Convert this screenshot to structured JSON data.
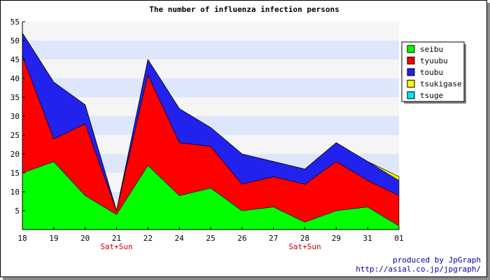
{
  "chart_data": {
    "type": "area",
    "stacked": true,
    "title": "The number of influenza infection persons",
    "xlabel": "",
    "ylabel": "",
    "categories": [
      "18",
      "19",
      "20",
      "21",
      "22",
      "24",
      "25",
      "26",
      "27",
      "28",
      "29",
      "31",
      "01"
    ],
    "weekend_markers": [
      {
        "category": "21",
        "label": "Sat+Sun"
      },
      {
        "category": "28",
        "label": "Sat+Sun"
      }
    ],
    "ylim": [
      0,
      55
    ],
    "yticks": [
      5,
      10,
      15,
      20,
      25,
      30,
      35,
      40,
      45,
      50,
      55
    ],
    "grid": "horizontal bands",
    "legend_position": "right",
    "series": [
      {
        "name": "seibu",
        "color": "#00ff00",
        "values": [
          15,
          18,
          9,
          4,
          17,
          9,
          11,
          5,
          6,
          2,
          5,
          6,
          1
        ]
      },
      {
        "name": "tyuubu",
        "color": "#ff0000",
        "values": [
          31,
          6,
          19,
          1,
          24,
          14,
          11,
          7,
          8,
          10,
          13,
          7,
          8
        ]
      },
      {
        "name": "toubu",
        "color": "#2222ee",
        "values": [
          6,
          15,
          5,
          0,
          4,
          9,
          5,
          8,
          4,
          4,
          5,
          5,
          4
        ]
      },
      {
        "name": "tsukigase",
        "color": "#ffff00",
        "values": [
          0,
          0,
          0,
          0,
          0,
          0,
          0,
          0,
          0,
          0,
          0,
          0,
          1
        ]
      },
      {
        "name": "tsuge",
        "color": "#00e5ff",
        "values": [
          0,
          0,
          0,
          0,
          0,
          0,
          0,
          0,
          0,
          0,
          0,
          0,
          0
        ]
      }
    ]
  },
  "credit": {
    "line1": "produced by JpGraph",
    "line2": "http://asial.co.jp/jpgraph/"
  }
}
